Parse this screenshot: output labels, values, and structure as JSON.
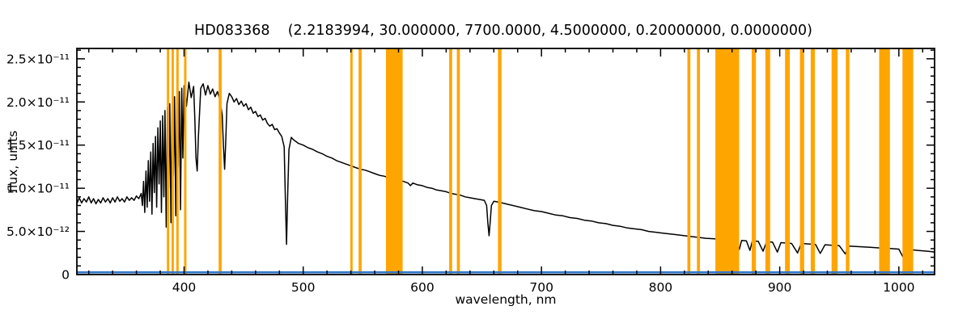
{
  "title": "HD083368    (2.2183994, 30.000000, 7700.0000, 4.5000000, 0.20000000, 0.0000000)",
  "chart_data": {
    "type": "line",
    "title": "HD083368    (2.2183994, 30.000000, 7700.0000, 4.5000000, 0.20000000, 0.0000000)",
    "xlabel": "wavelength, nm",
    "ylabel": "flux, units",
    "xlim": [
      310,
      1030
    ],
    "ylim": [
      0,
      2.62e-11
    ],
    "grid": false,
    "legend": "none",
    "flux_scale": 1e-12,
    "x_ticks": {
      "values": [
        400,
        500,
        600,
        700,
        800,
        900,
        1000
      ],
      "labels": [
        "400",
        "500",
        "600",
        "700",
        "800",
        "900",
        "1000"
      ],
      "minor_step": 20
    },
    "y_ticks": {
      "values": [
        0,
        5e-12,
        1e-11,
        1.5e-11,
        2e-11,
        2.5e-11
      ],
      "labels": [
        "0",
        "5.0×10⁻¹²",
        "1.0×10⁻¹¹",
        "1.5×10⁻¹¹",
        "2.0×10⁻¹¹",
        "2.5×10⁻¹¹"
      ],
      "minor_step": 1e-12
    },
    "bands": {
      "name": "flagged-wavelength-bands",
      "color": "#FFA500",
      "regions": [
        [
          385.5,
          387.5
        ],
        [
          389.5,
          391.5
        ],
        [
          393.5,
          395.5
        ],
        [
          400,
          402
        ],
        [
          429,
          431.5
        ],
        [
          539.5,
          541.5
        ],
        [
          546.5,
          549
        ],
        [
          569.5,
          583.5
        ],
        [
          622.5,
          625
        ],
        [
          629,
          631.5
        ],
        [
          663.5,
          666.5
        ],
        [
          822.5,
          825
        ],
        [
          830.5,
          833
        ],
        [
          846,
          866
        ],
        [
          876.5,
          880
        ],
        [
          888,
          892
        ],
        [
          904.5,
          908.5
        ],
        [
          917,
          920.5
        ],
        [
          926,
          929.5
        ],
        [
          943.5,
          948.5
        ],
        [
          955.5,
          958.5
        ],
        [
          983.5,
          992.5
        ],
        [
          1003,
          1012
        ]
      ]
    },
    "series": [
      {
        "name": "stellar-spectrum",
        "color": "#000000",
        "points": [
          [
            310,
            8.2
          ],
          [
            312,
            8.9
          ],
          [
            314,
            8.3
          ],
          [
            316,
            8.8
          ],
          [
            318,
            8.4
          ],
          [
            320,
            9.0
          ],
          [
            322,
            8.3
          ],
          [
            324,
            8.8
          ],
          [
            326,
            8.2
          ],
          [
            328,
            8.7
          ],
          [
            330,
            8.3
          ],
          [
            332,
            8.9
          ],
          [
            334,
            8.4
          ],
          [
            336,
            8.8
          ],
          [
            338,
            8.3
          ],
          [
            340,
            8.9
          ],
          [
            342,
            8.4
          ],
          [
            344,
            9.0
          ],
          [
            346,
            8.5
          ],
          [
            348,
            8.8
          ],
          [
            350,
            8.4
          ],
          [
            352,
            9.0
          ],
          [
            354,
            8.6
          ],
          [
            356,
            8.9
          ],
          [
            358,
            8.6
          ],
          [
            360,
            9.1
          ],
          [
            362,
            8.8
          ],
          [
            364,
            9.4
          ],
          [
            365,
            8.0
          ],
          [
            366,
            10.8
          ],
          [
            367,
            7.2
          ],
          [
            368,
            12.0
          ],
          [
            369,
            7.8
          ],
          [
            370,
            13.2
          ],
          [
            371,
            8.5
          ],
          [
            372,
            14.2
          ],
          [
            373,
            7.0
          ],
          [
            374,
            15.2
          ],
          [
            375,
            9.5
          ],
          [
            376,
            16.0
          ],
          [
            377,
            7.8
          ],
          [
            378,
            17.0
          ],
          [
            379,
            10.5
          ],
          [
            380,
            17.8
          ],
          [
            381,
            7.2
          ],
          [
            382,
            18.4
          ],
          [
            383,
            9.0
          ],
          [
            384,
            19.0
          ],
          [
            385,
            5.5
          ],
          [
            386,
            19.4
          ],
          [
            387,
            10.0
          ],
          [
            388,
            19.8
          ],
          [
            389,
            6.0
          ],
          [
            390,
            20.2
          ],
          [
            391,
            11.5
          ],
          [
            392,
            20.6
          ],
          [
            393,
            6.8
          ],
          [
            394,
            20.8
          ],
          [
            395,
            12.5
          ],
          [
            396,
            21.2
          ],
          [
            397,
            7.5
          ],
          [
            398,
            21.6
          ],
          [
            399,
            13.5
          ],
          [
            400,
            21.9
          ],
          [
            402,
            19.5
          ],
          [
            404,
            22.3
          ],
          [
            406,
            20.5
          ],
          [
            408,
            21.8
          ],
          [
            409,
            18.0
          ],
          [
            410,
            13.5
          ],
          [
            411,
            12.0
          ],
          [
            412,
            16.0
          ],
          [
            414,
            21.6
          ],
          [
            416,
            22.1
          ],
          [
            418,
            20.8
          ],
          [
            420,
            21.9
          ],
          [
            422,
            20.9
          ],
          [
            424,
            21.5
          ],
          [
            426,
            20.6
          ],
          [
            428,
            21.2
          ],
          [
            430,
            20.3
          ],
          [
            432,
            18.5
          ],
          [
            433,
            15.0
          ],
          [
            434,
            12.2
          ],
          [
            435,
            15.5
          ],
          [
            436,
            19.8
          ],
          [
            438,
            21.0
          ],
          [
            440,
            20.6
          ],
          [
            442,
            20.0
          ],
          [
            444,
            20.4
          ],
          [
            446,
            19.7
          ],
          [
            448,
            20.1
          ],
          [
            450,
            19.5
          ],
          [
            452,
            19.8
          ],
          [
            454,
            19.1
          ],
          [
            456,
            19.4
          ],
          [
            458,
            18.7
          ],
          [
            460,
            18.9
          ],
          [
            462,
            18.3
          ],
          [
            464,
            18.5
          ],
          [
            466,
            17.9
          ],
          [
            468,
            18.1
          ],
          [
            470,
            17.5
          ],
          [
            472,
            17.2
          ],
          [
            474,
            17.4
          ],
          [
            476,
            16.8
          ],
          [
            478,
            16.9
          ],
          [
            480,
            16.4
          ],
          [
            482,
            16.0
          ],
          [
            484,
            14.8
          ],
          [
            485,
            9.0
          ],
          [
            486,
            3.5
          ],
          [
            487,
            9.5
          ],
          [
            488,
            14.5
          ],
          [
            490,
            15.9
          ],
          [
            492,
            15.6
          ],
          [
            494,
            15.4
          ],
          [
            496,
            15.2
          ],
          [
            500,
            15.0
          ],
          [
            504,
            14.7
          ],
          [
            508,
            14.5
          ],
          [
            512,
            14.2
          ],
          [
            516,
            14.0
          ],
          [
            520,
            13.7
          ],
          [
            524,
            13.5
          ],
          [
            528,
            13.2
          ],
          [
            532,
            13.0
          ],
          [
            536,
            12.8
          ],
          [
            540,
            12.6
          ],
          [
            544,
            12.4
          ],
          [
            548,
            12.2
          ],
          [
            552,
            12.1
          ],
          [
            556,
            11.9
          ],
          [
            560,
            11.7
          ],
          [
            564,
            11.5
          ],
          [
            568,
            11.4
          ],
          [
            572,
            11.2
          ],
          [
            576,
            11.1
          ],
          [
            580,
            11.0
          ],
          [
            584,
            10.8
          ],
          [
            588,
            10.6
          ],
          [
            590,
            10.3
          ],
          [
            592,
            10.6
          ],
          [
            596,
            10.4
          ],
          [
            600,
            10.3
          ],
          [
            604,
            10.1
          ],
          [
            608,
            10.0
          ],
          [
            612,
            9.8
          ],
          [
            616,
            9.7
          ],
          [
            620,
            9.6
          ],
          [
            624,
            9.4
          ],
          [
            628,
            9.3
          ],
          [
            632,
            9.2
          ],
          [
            636,
            9.0
          ],
          [
            640,
            8.9
          ],
          [
            644,
            8.8
          ],
          [
            648,
            8.7
          ],
          [
            652,
            8.6
          ],
          [
            654,
            8.0
          ],
          [
            655,
            6.0
          ],
          [
            656,
            4.5
          ],
          [
            657,
            6.2
          ],
          [
            658,
            8.0
          ],
          [
            660,
            8.5
          ],
          [
            664,
            8.4
          ],
          [
            670,
            8.2
          ],
          [
            676,
            8.0
          ],
          [
            682,
            7.8
          ],
          [
            688,
            7.6
          ],
          [
            694,
            7.4
          ],
          [
            700,
            7.3
          ],
          [
            706,
            7.1
          ],
          [
            712,
            6.9
          ],
          [
            718,
            6.8
          ],
          [
            724,
            6.6
          ],
          [
            730,
            6.5
          ],
          [
            736,
            6.3
          ],
          [
            742,
            6.2
          ],
          [
            748,
            6.0
          ],
          [
            754,
            5.9
          ],
          [
            760,
            5.7
          ],
          [
            766,
            5.6
          ],
          [
            772,
            5.4
          ],
          [
            778,
            5.3
          ],
          [
            784,
            5.2
          ],
          [
            790,
            5.0
          ],
          [
            796,
            4.9
          ],
          [
            802,
            4.8
          ],
          [
            808,
            4.7
          ],
          [
            814,
            4.6
          ],
          [
            820,
            4.5
          ],
          [
            826,
            4.4
          ],
          [
            832,
            4.3
          ],
          [
            838,
            4.2
          ],
          [
            844,
            4.15
          ],
          [
            850,
            4.1
          ],
          [
            854,
            4.05
          ],
          [
            857,
            3.1
          ],
          [
            859,
            4.0
          ],
          [
            862,
            3.95
          ],
          [
            866,
            2.9
          ],
          [
            868,
            3.95
          ],
          [
            872,
            3.9
          ],
          [
            875,
            2.8
          ],
          [
            877,
            3.9
          ],
          [
            882,
            3.85
          ],
          [
            886,
            2.7
          ],
          [
            889,
            3.8
          ],
          [
            894,
            3.75
          ],
          [
            898,
            2.6
          ],
          [
            901,
            3.7
          ],
          [
            906,
            3.65
          ],
          [
            910,
            3.6
          ],
          [
            915,
            2.5
          ],
          [
            918,
            3.6
          ],
          [
            924,
            3.55
          ],
          [
            930,
            3.5
          ],
          [
            934,
            2.45
          ],
          [
            938,
            3.45
          ],
          [
            944,
            3.4
          ],
          [
            950,
            3.35
          ],
          [
            955,
            2.4
          ],
          [
            958,
            3.3
          ],
          [
            964,
            3.25
          ],
          [
            970,
            3.2
          ],
          [
            976,
            3.15
          ],
          [
            982,
            3.1
          ],
          [
            988,
            3.05
          ],
          [
            994,
            3.0
          ],
          [
            1000,
            2.95
          ],
          [
            1004,
            1.9
          ],
          [
            1008,
            2.9
          ],
          [
            1012,
            2.85
          ],
          [
            1016,
            2.8
          ],
          [
            1020,
            2.75
          ],
          [
            1024,
            2.7
          ],
          [
            1028,
            2.65
          ],
          [
            1030,
            2.6
          ]
        ]
      },
      {
        "name": "baseline-spectrum",
        "color": "#2e75c9",
        "points": [
          [
            310,
            0.25
          ],
          [
            1030,
            0.25
          ]
        ]
      }
    ]
  }
}
